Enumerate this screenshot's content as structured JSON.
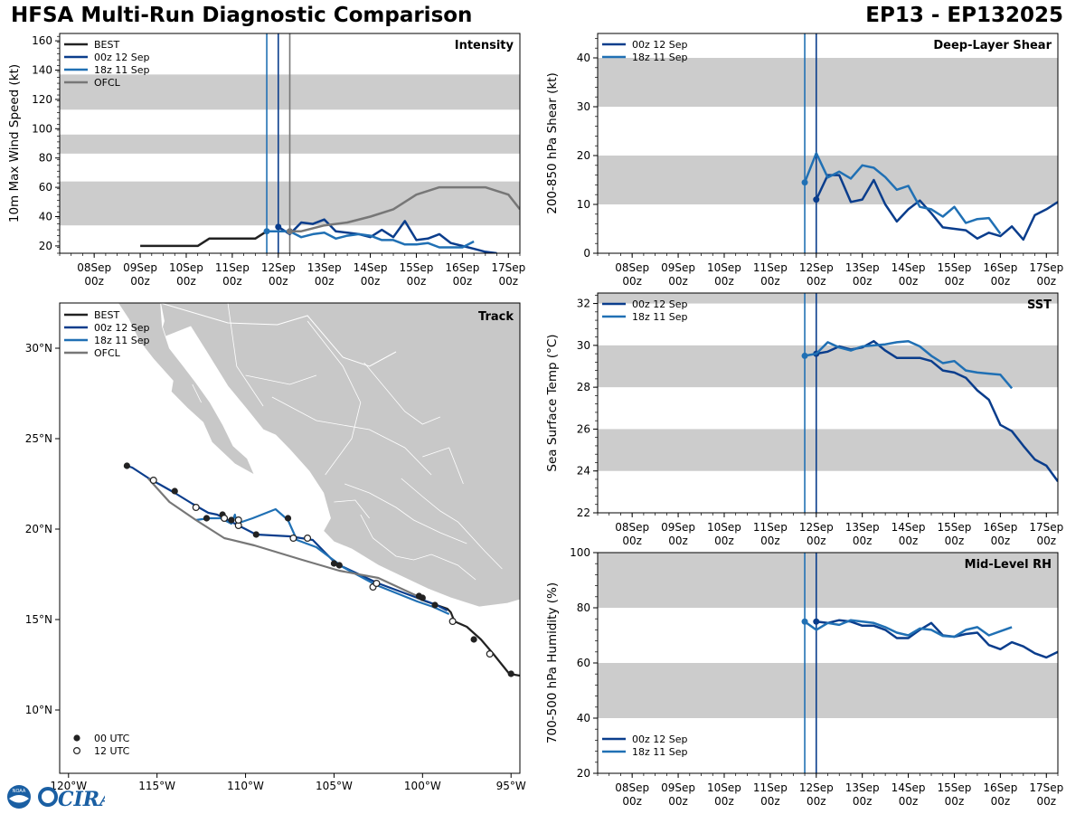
{
  "header": {
    "title": "HFSA Multi-Run Diagnostic Comparison",
    "storm": "EP13 - EP132025"
  },
  "colors": {
    "best": "#222222",
    "run00": "#0a3d8c",
    "run18": "#2070b4",
    "ofcl": "#777777",
    "band": "#cccccc",
    "land": "#c8c8c8"
  },
  "logos": {
    "noaa": "NOAA",
    "cira": "CIRA"
  },
  "time_axis": {
    "ticks": [
      0,
      1,
      2,
      3,
      4,
      5,
      6,
      7,
      8,
      9
    ],
    "tick_line1": [
      "08Sep",
      "09Sep",
      "10Sep",
      "11Sep",
      "12Sep",
      "13Sep",
      "14Sep",
      "15Sep",
      "16Sep",
      "17Sep"
    ],
    "tick_line2": [
      "00z",
      "00z",
      "00z",
      "00z",
      "00z",
      "00z",
      "00z",
      "00z",
      "00z",
      "00z"
    ],
    "range": [
      -0.75,
      9.25
    ]
  },
  "chart_data": [
    {
      "id": "intensity",
      "type": "line",
      "title": "Intensity",
      "ylabel": "10m Max Wind Speed (kt)",
      "ylim": [
        15,
        165
      ],
      "yticks": [
        20,
        40,
        60,
        80,
        100,
        120,
        140,
        160
      ],
      "bands": [
        [
          34,
          64
        ],
        [
          83,
          96
        ],
        [
          113,
          137
        ]
      ],
      "vlines": [
        {
          "x": 3.75,
          "series": "18z 11 Sep"
        },
        {
          "x": 4.0,
          "series": "00z 12 Sep"
        },
        {
          "x": 4.25,
          "series": "OFCL"
        }
      ],
      "legend": [
        "BEST",
        "00z 12 Sep",
        "18z 11 Sep",
        "OFCL"
      ],
      "series": [
        {
          "name": "BEST",
          "color": "best",
          "x": [
            1,
            1.25,
            1.5,
            1.75,
            2,
            2.25,
            2.5,
            2.75,
            3,
            3.25,
            3.5,
            3.75,
            4,
            4.25
          ],
          "y": [
            20,
            20,
            20,
            20,
            20,
            20,
            25,
            25,
            25,
            25,
            25,
            30,
            30,
            30
          ]
        },
        {
          "name": "00z 12 Sep",
          "color": "run00",
          "x": [
            4,
            4.25,
            4.5,
            4.75,
            5,
            5.25,
            5.5,
            5.75,
            6,
            6.25,
            6.5,
            6.75,
            7,
            7.25,
            7.5,
            7.75,
            8,
            8.25,
            8.5,
            8.75
          ],
          "y": [
            33,
            28,
            36,
            35,
            38,
            30,
            29,
            28,
            26,
            31,
            26,
            37,
            24,
            25,
            28,
            22,
            20,
            18,
            16,
            15
          ],
          "marker": true
        },
        {
          "name": "18z 11 Sep",
          "color": "run18",
          "x": [
            3.75,
            4,
            4.25,
            4.5,
            4.75,
            5,
            5.25,
            5.5,
            5.75,
            6,
            6.25,
            6.5,
            6.75,
            7,
            7.25,
            7.5,
            7.75,
            8,
            8.25
          ],
          "y": [
            30,
            30,
            30,
            26,
            28,
            29,
            25,
            27,
            28,
            27,
            24,
            24,
            21,
            21,
            22,
            19,
            19,
            19,
            23
          ],
          "marker": true
        },
        {
          "name": "OFCL",
          "color": "ofcl",
          "x": [
            4.25,
            4.5,
            5,
            5.5,
            6,
            6.5,
            7,
            7.5,
            8,
            8.5,
            9,
            9.25
          ],
          "y": [
            30,
            30,
            34,
            36,
            40,
            45,
            55,
            60,
            60,
            60,
            55,
            45
          ],
          "marker": true
        }
      ]
    },
    {
      "id": "shear",
      "type": "line",
      "title": "Deep-Layer Shear",
      "ylabel": "200-850 hPa Shear (kt)",
      "ylim": [
        0,
        45
      ],
      "yticks": [
        0,
        10,
        20,
        30,
        40
      ],
      "bands": [
        [
          10,
          20
        ],
        [
          30,
          40
        ]
      ],
      "vlines": [
        {
          "x": 3.75,
          "series": "18z 11 Sep"
        },
        {
          "x": 4.0,
          "series": "00z 12 Sep"
        }
      ],
      "legend": [
        "00z 12 Sep",
        "18z 11 Sep"
      ],
      "series": [
        {
          "name": "00z 12 Sep",
          "color": "run00",
          "x": [
            4,
            4.25,
            4.5,
            4.75,
            5,
            5.25,
            5.5,
            5.75,
            6,
            6.25,
            6.5,
            6.75,
            7,
            7.25,
            7.5,
            7.75,
            8,
            8.25,
            8.5,
            8.75,
            9,
            9.25
          ],
          "y": [
            11,
            16,
            16,
            10.5,
            11,
            15,
            10,
            6.5,
            9,
            10.8,
            8.2,
            5.3,
            5,
            4.7,
            3,
            4.2,
            3.5,
            5.5,
            2.8,
            7.8,
            9,
            10.5
          ],
          "marker": true
        },
        {
          "name": "18z 11 Sep",
          "color": "run18",
          "x": [
            3.75,
            4,
            4.25,
            4.5,
            4.75,
            5,
            5.25,
            5.5,
            5.75,
            6,
            6.25,
            6.5,
            6.75,
            7,
            7.25,
            7.5,
            7.75,
            8
          ],
          "y": [
            14.5,
            20.5,
            15.5,
            16.7,
            15.3,
            18,
            17.5,
            15.6,
            13,
            13.8,
            9.5,
            9,
            7.5,
            9.5,
            6.2,
            7,
            7.2,
            4
          ],
          "marker": true
        }
      ]
    },
    {
      "id": "sst",
      "type": "line",
      "title": "SST",
      "ylabel": "Sea Surface Temp (°C)",
      "ylim": [
        22,
        32.5
      ],
      "yticks": [
        22,
        24,
        26,
        28,
        30,
        32
      ],
      "bands": [
        [
          24,
          26
        ],
        [
          28,
          30
        ],
        [
          32,
          32.5
        ]
      ],
      "vlines": [
        {
          "x": 3.75,
          "series": "18z 11 Sep"
        },
        {
          "x": 4.0,
          "series": "00z 12 Sep"
        }
      ],
      "legend": [
        "00z 12 Sep",
        "18z 11 Sep"
      ],
      "series": [
        {
          "name": "00z 12 Sep",
          "color": "run00",
          "x": [
            4,
            4.25,
            4.5,
            4.75,
            5,
            5.25,
            5.5,
            5.75,
            6,
            6.25,
            6.5,
            6.75,
            7,
            7.25,
            7.5,
            7.75,
            8,
            8.25,
            8.5,
            8.75,
            9,
            9.25
          ],
          "y": [
            29.6,
            29.7,
            29.95,
            29.8,
            29.9,
            30.2,
            29.75,
            29.4,
            29.4,
            29.4,
            29.25,
            28.8,
            28.7,
            28.45,
            27.85,
            27.4,
            26.2,
            25.9,
            25.2,
            24.55,
            24.25,
            23.5
          ],
          "marker": true
        },
        {
          "name": "18z 11 Sep",
          "color": "run18",
          "x": [
            3.75,
            4,
            4.25,
            4.5,
            4.75,
            5,
            5.25,
            5.5,
            5.75,
            6,
            6.25,
            6.5,
            6.75,
            7,
            7.25,
            7.5,
            7.75,
            8,
            8.25
          ],
          "y": [
            29.5,
            29.6,
            30.15,
            29.9,
            29.75,
            29.95,
            30.0,
            30.05,
            30.15,
            30.2,
            29.95,
            29.5,
            29.15,
            29.25,
            28.8,
            28.7,
            28.65,
            28.6,
            27.95
          ],
          "marker": true
        }
      ]
    },
    {
      "id": "rh",
      "type": "line",
      "title": "Mid-Level RH",
      "ylabel": "700-500 hPa Humidity (%)",
      "ylim": [
        20,
        100
      ],
      "yticks": [
        20,
        40,
        60,
        80,
        100
      ],
      "bands": [
        [
          40,
          60
        ],
        [
          80,
          100
        ]
      ],
      "vlines": [
        {
          "x": 3.75,
          "series": "18z 11 Sep"
        },
        {
          "x": 4.0,
          "series": "00z 12 Sep"
        }
      ],
      "legend": [
        "00z 12 Sep",
        "18z 11 Sep"
      ],
      "series": [
        {
          "name": "00z 12 Sep",
          "color": "run00",
          "x": [
            4,
            4.25,
            4.5,
            4.75,
            5,
            5.25,
            5.5,
            5.75,
            6,
            6.25,
            6.5,
            6.75,
            7,
            7.25,
            7.5,
            7.75,
            8,
            8.25,
            8.5,
            8.75,
            9,
            9.25
          ],
          "y": [
            75,
            74.5,
            75.5,
            75,
            73.5,
            73.5,
            72,
            69,
            69,
            72,
            74.5,
            70,
            69.5,
            70.5,
            71,
            66.5,
            65,
            67.5,
            66,
            63.5,
            62,
            64
          ],
          "marker": true
        },
        {
          "name": "18z 11 Sep",
          "color": "run18",
          "x": [
            3.75,
            4,
            4.25,
            4.5,
            4.75,
            5,
            5.25,
            5.5,
            5.75,
            6,
            6.25,
            6.5,
            6.75,
            7,
            7.25,
            7.5,
            7.75,
            8,
            8.25
          ],
          "y": [
            75,
            72,
            74.5,
            73.8,
            75.5,
            75,
            74.5,
            73,
            71,
            70,
            72.5,
            72,
            69.8,
            69.5,
            72,
            73,
            70,
            71.5,
            73
          ],
          "marker": true
        }
      ]
    },
    {
      "id": "track",
      "type": "scatter",
      "title": "Track",
      "xlim": [
        -120.5,
        -94.5
      ],
      "ylim": [
        6.5,
        32.5
      ],
      "xticks": [
        -120,
        -115,
        -110,
        -105,
        -100,
        -95
      ],
      "xtick_labels": [
        "120°W",
        "115°W",
        "110°W",
        "105°W",
        "100°W",
        "95°W"
      ],
      "yticks": [
        10,
        15,
        20,
        25,
        30
      ],
      "ytick_labels": [
        "10°N",
        "15°N",
        "20°N",
        "25°N",
        "30°N"
      ],
      "legend": [
        "BEST",
        "00z 12 Sep",
        "18z 11 Sep",
        "OFCL"
      ],
      "marker_legend": [
        "00 UTC",
        "12 UTC"
      ],
      "series": [
        {
          "name": "BEST",
          "color": "best",
          "lon": [
            -94.5,
            -95.1,
            -96.0,
            -96.7,
            -97.5,
            -98.2,
            -98.4,
            -98.6,
            -99.2,
            -99.8,
            -100.3
          ],
          "lat": [
            11.9,
            12.0,
            13.1,
            13.9,
            14.6,
            14.9,
            15.4,
            15.6,
            15.8,
            16.0,
            16.2
          ]
        },
        {
          "name": "00z 12 Sep",
          "color": "run00",
          "lon": [
            -98.6,
            -99.2,
            -100.3,
            -102.5,
            -104.9,
            -106.2,
            -107.5,
            -109.4,
            -110.8,
            -111.6,
            -112.1,
            -113.0,
            -114.0,
            -114.9,
            -115.3,
            -116.4,
            -116.7
          ],
          "lat": [
            15.5,
            15.8,
            16.2,
            17.0,
            18.1,
            19.4,
            19.6,
            19.7,
            20.4,
            20.8,
            20.9,
            21.4,
            22.0,
            22.5,
            22.7,
            23.4,
            23.5
          ]
        },
        {
          "name": "18z 11 Sep",
          "color": "run18",
          "lon": [
            -98.5,
            -99.4,
            -100.3,
            -102.6,
            -104.5,
            -106.0,
            -107.1,
            -107.6,
            -108.3,
            -109.6,
            -110.5,
            -110.6,
            -110.8,
            -111.4,
            -112.1,
            -112.8
          ],
          "lat": [
            15.3,
            15.7,
            16.0,
            16.9,
            17.9,
            19.0,
            19.4,
            20.5,
            21.1,
            20.6,
            20.3,
            20.8,
            20.3,
            20.6,
            20.6,
            20.5
          ]
        },
        {
          "name": "OFCL",
          "color": "ofcl",
          "lon": [
            -100.3,
            -102.5,
            -104.7,
            -106.8,
            -109.5,
            -111.2,
            -112.8,
            -114.3,
            -115.5
          ],
          "lat": [
            16.3,
            17.3,
            17.7,
            18.3,
            19.1,
            19.5,
            20.5,
            21.5,
            22.8
          ]
        }
      ],
      "points_00utc": [
        {
          "lon": -95.0,
          "lat": 12.0
        },
        {
          "lon": -97.1,
          "lat": 13.9
        },
        {
          "lon": -100.0,
          "lat": 16.2
        },
        {
          "lon": -99.3,
          "lat": 15.8
        },
        {
          "lon": -105.0,
          "lat": 18.1
        },
        {
          "lon": -104.7,
          "lat": 18.0
        },
        {
          "lon": -109.4,
          "lat": 19.7
        },
        {
          "lon": -112.2,
          "lat": 20.6
        },
        {
          "lon": -110.8,
          "lat": 20.5
        },
        {
          "lon": -111.3,
          "lat": 20.8
        },
        {
          "lon": -107.6,
          "lat": 20.6
        },
        {
          "lon": -114.0,
          "lat": 22.1
        },
        {
          "lon": -116.7,
          "lat": 23.5
        },
        {
          "lon": -100.2,
          "lat": 16.3
        }
      ],
      "points_12utc": [
        {
          "lon": -96.2,
          "lat": 13.1
        },
        {
          "lon": -98.3,
          "lat": 14.9
        },
        {
          "lon": -102.8,
          "lat": 16.8
        },
        {
          "lon": -102.6,
          "lat": 17.0
        },
        {
          "lon": -107.3,
          "lat": 19.5
        },
        {
          "lon": -106.5,
          "lat": 19.5
        },
        {
          "lon": -110.4,
          "lat": 20.2
        },
        {
          "lon": -110.4,
          "lat": 20.5
        },
        {
          "lon": -111.2,
          "lat": 20.6
        },
        {
          "lon": -112.8,
          "lat": 21.2
        },
        {
          "lon": -115.2,
          "lat": 22.7
        }
      ]
    }
  ]
}
